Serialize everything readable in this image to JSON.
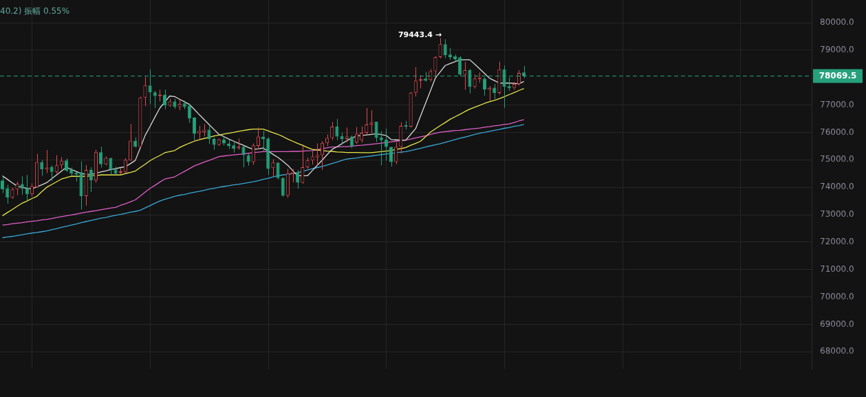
{
  "chart_data": {
    "type": "candlestick",
    "categories": [
      null,
      null,
      null,
      null,
      null,
      null,
      null,
      null,
      null,
      null,
      null,
      null,
      null,
      null,
      null,
      null,
      null,
      null,
      null,
      null,
      null,
      null,
      null,
      null,
      null,
      null,
      null,
      null,
      null,
      null,
      null,
      null,
      null,
      null,
      null,
      null,
      null,
      null,
      null,
      null,
      null,
      null,
      null,
      null,
      null,
      null,
      null,
      null,
      null,
      null,
      null,
      null,
      null,
      null,
      null,
      null,
      null,
      null,
      null,
      null,
      null,
      null,
      null,
      null,
      null,
      null,
      null,
      null,
      null,
      null,
      null,
      null,
      null,
      null,
      null,
      null,
      null,
      null,
      null,
      null,
      null,
      null,
      null,
      null,
      null,
      null,
      null,
      null,
      null,
      null,
      null,
      null,
      null,
      null,
      null,
      null,
      null,
      null,
      null,
      null,
      null,
      null,
      null,
      null,
      null,
      null,
      null,
      null,
      null,
      null,
      null,
      null,
      null,
      null,
      null,
      null,
      null,
      null,
      null,
      null,
      null,
      null,
      null,
      null,
      null,
      null,
      null,
      null,
      null,
      null,
      null,
      null,
      null,
      null,
      null,
      null,
      null,
      null,
      null,
      null,
      null,
      null,
      null,
      null,
      null,
      null,
      null,
      null,
      null,
      null,
      null,
      null,
      null,
      null,
      null,
      null,
      null,
      null,
      null,
      null,
      null,
      null,
      null,
      null,
      null
    ],
    "ohlc": [
      [
        74250,
        74380,
        73790,
        73920
      ],
      [
        73970,
        74090,
        73400,
        73620
      ],
      [
        73620,
        73980,
        73580,
        73920
      ],
      [
        73920,
        74200,
        73710,
        74130
      ],
      [
        74120,
        74400,
        73730,
        73940
      ],
      [
        73970,
        74450,
        73500,
        73750
      ],
      [
        73750,
        74140,
        73670,
        74040
      ],
      [
        74000,
        75220,
        73980,
        74920
      ],
      [
        74920,
        74990,
        74420,
        74650
      ],
      [
        74650,
        75360,
        74520,
        74720
      ],
      [
        74730,
        74800,
        74230,
        74560
      ],
      [
        74560,
        75170,
        74500,
        74800
      ],
      [
        74800,
        75100,
        74670,
        74970
      ],
      [
        74980,
        75050,
        74560,
        74610
      ],
      [
        74630,
        74720,
        74420,
        74500
      ],
      [
        74530,
        74560,
        74210,
        74460
      ],
      [
        74550,
        74950,
        73190,
        73680
      ],
      [
        73680,
        74810,
        73330,
        74630
      ],
      [
        74630,
        74730,
        73830,
        74250
      ],
      [
        74250,
        75370,
        74170,
        75280
      ],
      [
        75280,
        75480,
        74720,
        74840
      ],
      [
        74840,
        75130,
        74800,
        75070
      ],
      [
        75070,
        75070,
        74470,
        74650
      ],
      [
        74650,
        74750,
        74460,
        74500
      ],
      [
        74530,
        74710,
        74470,
        74580
      ],
      [
        74560,
        75060,
        74500,
        75000
      ],
      [
        74980,
        76310,
        74970,
        75700
      ],
      [
        75700,
        75820,
        75450,
        75470
      ],
      [
        75470,
        77310,
        75450,
        77270
      ],
      [
        77270,
        78020,
        76960,
        77710
      ],
      [
        77710,
        78300,
        77040,
        77460
      ],
      [
        77460,
        77520,
        76890,
        77330
      ],
      [
        77330,
        77560,
        77130,
        77380
      ],
      [
        77380,
        77560,
        76850,
        76990
      ],
      [
        76980,
        77230,
        76930,
        77130
      ],
      [
        77130,
        77230,
        76860,
        76930
      ],
      [
        76930,
        77190,
        76810,
        77040
      ],
      [
        77060,
        77160,
        76850,
        76930
      ],
      [
        76980,
        77060,
        76350,
        76510
      ],
      [
        76540,
        76560,
        75720,
        75950
      ],
      [
        75970,
        76240,
        75740,
        76050
      ],
      [
        76010,
        76310,
        75850,
        76100
      ],
      [
        76100,
        76230,
        75580,
        75760
      ],
      [
        75760,
        75820,
        75370,
        75550
      ],
      [
        75550,
        75780,
        75510,
        75740
      ],
      [
        75740,
        75850,
        75520,
        75600
      ],
      [
        75600,
        75720,
        75400,
        75510
      ],
      [
        75530,
        75700,
        75260,
        75400
      ],
      [
        75420,
        75780,
        75370,
        75480
      ],
      [
        75480,
        75520,
        74730,
        75170
      ],
      [
        75170,
        75220,
        74790,
        74920
      ],
      [
        74920,
        75600,
        74820,
        75530
      ],
      [
        75510,
        76180,
        75380,
        75850
      ],
      [
        75850,
        76060,
        75320,
        75760
      ],
      [
        75780,
        75820,
        74450,
        74670
      ],
      [
        74700,
        75020,
        74400,
        74900
      ],
      [
        74900,
        74900,
        74290,
        74340
      ],
      [
        74340,
        74370,
        73660,
        73690
      ],
      [
        73690,
        74670,
        73620,
        74500
      ],
      [
        74480,
        74670,
        74180,
        74550
      ],
      [
        74550,
        74630,
        73950,
        74170
      ],
      [
        74170,
        75510,
        74130,
        74730
      ],
      [
        74730,
        75080,
        74670,
        74980
      ],
      [
        74980,
        75320,
        74830,
        75120
      ],
      [
        75090,
        75600,
        74800,
        75170
      ],
      [
        75170,
        75680,
        74630,
        75620
      ],
      [
        75620,
        75930,
        75500,
        75800
      ],
      [
        75800,
        76390,
        75720,
        76210
      ],
      [
        76210,
        76490,
        75720,
        75850
      ],
      [
        75870,
        75990,
        75570,
        75760
      ],
      [
        75760,
        76180,
        75640,
        75850
      ],
      [
        75850,
        75890,
        75430,
        75500
      ],
      [
        75630,
        76200,
        75580,
        75950
      ],
      [
        75720,
        76220,
        75630,
        75990
      ],
      [
        75990,
        76890,
        75930,
        76290
      ],
      [
        76290,
        76810,
        75970,
        76370
      ],
      [
        76390,
        76390,
        75650,
        75800
      ],
      [
        75820,
        76050,
        74800,
        75720
      ],
      [
        75740,
        76140,
        74970,
        75470
      ],
      [
        75470,
        75480,
        74760,
        74920
      ],
      [
        74920,
        75640,
        74840,
        75470
      ],
      [
        75470,
        76370,
        75230,
        76240
      ],
      [
        76270,
        76420,
        76110,
        76210
      ],
      [
        76210,
        77480,
        76180,
        77450
      ],
      [
        77450,
        78380,
        77310,
        77890
      ],
      [
        77890,
        78080,
        77610,
        77940
      ],
      [
        77960,
        78210,
        77850,
        77890
      ],
      [
        77910,
        78310,
        77850,
        78230
      ],
      [
        78230,
        78780,
        78020,
        78750
      ],
      [
        78750,
        79443.4,
        78700,
        79220
      ],
      [
        79220,
        79400,
        78710,
        78820
      ],
      [
        78840,
        79080,
        78650,
        78750
      ],
      [
        78780,
        78840,
        78590,
        78670
      ],
      [
        78740,
        78780,
        78060,
        78110
      ],
      [
        78110,
        78570,
        77560,
        78270
      ],
      [
        78270,
        78310,
        77420,
        77660
      ],
      [
        77660,
        78110,
        77600,
        77960
      ],
      [
        77940,
        78190,
        77820,
        78000
      ],
      [
        77960,
        78010,
        77340,
        77560
      ],
      [
        77560,
        77690,
        77140,
        77630
      ],
      [
        77630,
        77770,
        77220,
        77440
      ],
      [
        77440,
        78580,
        77380,
        78300
      ],
      [
        78300,
        78440,
        76890,
        77660
      ],
      [
        77690,
        78010,
        77520,
        77610
      ],
      [
        77630,
        77840,
        77560,
        77770
      ],
      [
        77770,
        78270,
        77710,
        78170
      ],
      [
        78190,
        78420,
        77980,
        78069.5
      ],
      null,
      null,
      null,
      null,
      null,
      null,
      null,
      null,
      null,
      null,
      null,
      null,
      null,
      null,
      null,
      null,
      null,
      null,
      null,
      null,
      null,
      null,
      null,
      null,
      null,
      null,
      null,
      null,
      null,
      null,
      null,
      null,
      null,
      null,
      null,
      null,
      null,
      null,
      null,
      null,
      null,
      null,
      null,
      null,
      null,
      null,
      null,
      null,
      null,
      null,
      null,
      null,
      null,
      null,
      null,
      null,
      null,
      null
    ],
    "colors": [
      "#26a17b",
      "#26a17b",
      "#e04a50",
      "#e04a50",
      "#26a17b",
      "#26a17b",
      "#e04a50",
      "#e04a50",
      "#26a17b",
      "#e04a50",
      "#26a17b",
      "#e04a50",
      "#e04a50",
      "#26a17b",
      "#26a17b",
      "#26a17b",
      "#26a17b",
      "#e04a50",
      "#26a17b",
      "#e04a50",
      "#26a17b",
      "#e04a50",
      "#26a17b",
      "#26a17b",
      "#e04a50",
      "#e04a50",
      "#e04a50",
      "#26a17b",
      "#e04a50",
      "#e04a50",
      "#26a17b",
      "#26a17b",
      "#e04a50",
      "#26a17b",
      "#e04a50",
      "#26a17b",
      "#e04a50",
      "#26a17b",
      "#26a17b",
      "#26a17b",
      "#e04a50",
      "#e04a50",
      "#26a17b",
      "#26a17b",
      "#e04a50",
      "#26a17b",
      "#26a17b",
      "#26a17b",
      "#e04a50",
      "#26a17b",
      "#26a17b",
      "#e04a50",
      "#e04a50",
      "#26a17b",
      "#26a17b",
      "#e04a50",
      "#26a17b",
      "#26a17b",
      "#e04a50",
      "#e04a50",
      "#26a17b",
      "#e04a50",
      "#e04a50",
      "#e04a50",
      "#e04a50",
      "#e04a50",
      "#e04a50",
      "#e04a50",
      "#26a17b",
      "#26a17b",
      "#e04a50",
      "#26a17b",
      "#e04a50",
      "#e04a50",
      "#e04a50",
      "#e04a50",
      "#26a17b",
      "#26a17b",
      "#26a17b",
      "#26a17b",
      "#e04a50",
      "#e04a50",
      "#26a17b",
      "#e04a50",
      "#e04a50",
      "#e04a50",
      "#26a17b",
      "#e04a50",
      "#e04a50",
      "#e04a50",
      "#26a17b",
      "#26a17b",
      "#26a17b",
      "#26a17b",
      "#e04a50",
      "#26a17b",
      "#e04a50",
      "#e04a50",
      "#26a17b",
      "#e04a50",
      "#26a17b",
      "#e04a50",
      "#26a17b",
      "#26a17b",
      "#e04a50",
      "#e04a50",
      "#26a17b",
      null,
      null,
      null,
      null,
      null,
      null,
      null,
      null,
      null,
      null,
      null,
      null,
      null,
      null,
      null,
      null,
      null,
      null,
      null,
      null,
      null,
      null,
      null,
      null,
      null,
      null,
      null,
      null,
      null,
      null,
      null,
      null,
      null,
      null,
      null,
      null,
      null,
      null,
      null,
      null,
      null,
      null,
      null,
      null,
      null,
      null,
      null,
      null,
      null,
      null,
      null,
      null,
      null,
      null,
      null,
      null,
      null,
      null
    ],
    "series": [
      {
        "type": "line",
        "color": "#d9d9d9",
        "values": [
          74420,
          74290,
          74160,
          74040,
          74000,
          73960,
          73940,
          74020,
          74090,
          74170,
          74310,
          74450,
          74590,
          74730,
          74650,
          74580,
          74500,
          74480,
          74470,
          74510,
          74560,
          74600,
          74650,
          74680,
          74720,
          74750,
          74860,
          74980,
          75430,
          75890,
          76220,
          76560,
          76890,
          77110,
          77330,
          77310,
          77210,
          77120,
          77020,
          76840,
          76650,
          76470,
          76290,
          76110,
          75930,
          75850,
          75760,
          75680,
          75600,
          75530,
          75450,
          75380,
          75400,
          75430,
          75320,
          75200,
          75090,
          74950,
          74800,
          74610,
          74420,
          74420,
          74420,
          74610,
          74800,
          74990,
          75190,
          75380,
          75480,
          75590,
          75700,
          75790,
          75870,
          75890,
          75910,
          75930,
          75950,
          75920,
          75890,
          75740,
          75730,
          75720,
          75720,
          75930,
          76140,
          76600,
          77060,
          77520,
          77980,
          78210,
          78440,
          78510,
          78580,
          78650,
          78650,
          78650,
          78490,
          78320,
          78150,
          77980,
          77890,
          77800,
          77800,
          77800,
          77790,
          77770,
          77860,
          null,
          null,
          null,
          null,
          null,
          null,
          null,
          null,
          null,
          null,
          null,
          null,
          null,
          null,
          null,
          null,
          null,
          null,
          null,
          null,
          null,
          null,
          null,
          null,
          null,
          null,
          null,
          null,
          null,
          null,
          null,
          null,
          null,
          null,
          null,
          null,
          null,
          null,
          null,
          null,
          null,
          null,
          null,
          null,
          null,
          null,
          null,
          null,
          null,
          null,
          null,
          null,
          null,
          null,
          null,
          null,
          null,
          null
        ]
      },
      {
        "type": "line",
        "color": "#e6e64a",
        "values": [
          72960,
          73080,
          73190,
          73310,
          73420,
          73500,
          73590,
          73670,
          73840,
          74000,
          74100,
          74200,
          74300,
          74350,
          74400,
          74400,
          74400,
          74400,
          74420,
          74430,
          74450,
          74450,
          74450,
          74450,
          74450,
          74500,
          74540,
          74590,
          74720,
          74840,
          74970,
          75070,
          75160,
          75260,
          75300,
          75340,
          75450,
          75530,
          75610,
          75680,
          75730,
          75780,
          75820,
          75870,
          75900,
          75940,
          75970,
          76000,
          76040,
          76070,
          76100,
          76120,
          76120,
          76120,
          76060,
          75990,
          75930,
          75850,
          75760,
          75680,
          75600,
          75530,
          75450,
          75380,
          75360,
          75340,
          75320,
          75310,
          75290,
          75280,
          75270,
          75270,
          75270,
          75260,
          75260,
          75260,
          75280,
          75300,
          75320,
          75340,
          75380,
          75410,
          75450,
          75530,
          75600,
          75680,
          75840,
          76010,
          76130,
          76250,
          76360,
          76480,
          76570,
          76660,
          76760,
          76850,
          76920,
          76990,
          77060,
          77120,
          77170,
          77230,
          77300,
          77380,
          77450,
          77530,
          77600,
          null,
          null,
          null,
          null,
          null,
          null,
          null,
          null,
          null,
          null,
          null,
          null,
          null,
          null,
          null,
          null,
          null,
          null,
          null,
          null,
          null,
          null,
          null,
          null,
          null,
          null,
          null,
          null,
          null,
          null,
          null,
          null,
          null,
          null,
          null,
          null,
          null,
          null,
          null,
          null,
          null,
          null,
          null,
          null,
          null,
          null,
          null,
          null,
          null,
          null,
          null,
          null,
          null,
          null,
          null,
          null,
          null,
          null
        ]
      },
      {
        "type": "line",
        "color": "#e05fc8",
        "values": [
          72620,
          72640,
          72670,
          72690,
          72710,
          72740,
          72760,
          72780,
          72810,
          72830,
          72860,
          72900,
          72930,
          72960,
          72990,
          73020,
          73060,
          73090,
          73120,
          73150,
          73180,
          73210,
          73240,
          73270,
          73340,
          73400,
          73470,
          73540,
          73680,
          73820,
          73960,
          74070,
          74190,
          74300,
          74340,
          74380,
          74480,
          74580,
          74680,
          74780,
          74850,
          74920,
          74980,
          75050,
          75120,
          75140,
          75160,
          75180,
          75200,
          75220,
          75240,
          75260,
          75280,
          75300,
          75300,
          75300,
          75300,
          75300,
          75300,
          75310,
          75310,
          75320,
          75330,
          75340,
          75370,
          75410,
          75440,
          75470,
          75470,
          75480,
          75480,
          75500,
          75520,
          75530,
          75550,
          75570,
          75590,
          75610,
          75630,
          75660,
          75680,
          75700,
          75720,
          75760,
          75800,
          75840,
          75880,
          75930,
          75970,
          76010,
          76030,
          76050,
          76070,
          76080,
          76100,
          76120,
          76140,
          76160,
          76190,
          76210,
          76240,
          76260,
          76290,
          76310,
          76360,
          76420,
          76470,
          null,
          null,
          null,
          null,
          null,
          null,
          null,
          null,
          null,
          null,
          null,
          null,
          null,
          null,
          null,
          null,
          null,
          null,
          null,
          null,
          null,
          null,
          null,
          null,
          null,
          null,
          null,
          null,
          null,
          null,
          null,
          null,
          null,
          null,
          null,
          null,
          null,
          null,
          null,
          null,
          null,
          null,
          null,
          null,
          null,
          null,
          null,
          null,
          null,
          null,
          null,
          null,
          null,
          null,
          null,
          null,
          null,
          null
        ]
      },
      {
        "type": "line",
        "color": "#3aa7d6",
        "values": [
          72160,
          72190,
          72210,
          72240,
          72270,
          72300,
          72330,
          72350,
          72380,
          72410,
          72450,
          72490,
          72540,
          72580,
          72620,
          72660,
          72710,
          72750,
          72790,
          72830,
          72870,
          72900,
          72940,
          72980,
          73010,
          73050,
          73090,
          73120,
          73160,
          73250,
          73330,
          73420,
          73500,
          73560,
          73610,
          73670,
          73710,
          73740,
          73780,
          73820,
          73850,
          73890,
          73930,
          73960,
          74000,
          74030,
          74060,
          74090,
          74110,
          74140,
          74170,
          74200,
          74240,
          74290,
          74330,
          74380,
          74420,
          74450,
          74470,
          74500,
          74530,
          74580,
          74630,
          74680,
          74720,
          74760,
          74810,
          74870,
          74920,
          74980,
          75030,
          75050,
          75070,
          75100,
          75120,
          75140,
          75170,
          75190,
          75210,
          75230,
          75260,
          75280,
          75300,
          75340,
          75380,
          75420,
          75470,
          75510,
          75550,
          75590,
          75640,
          75690,
          75740,
          75790,
          75830,
          75880,
          75930,
          75970,
          76000,
          76040,
          76080,
          76110,
          76150,
          76180,
          76220,
          76250,
          76290,
          null,
          null,
          null,
          null,
          null,
          null,
          null,
          null,
          null,
          null,
          null,
          null,
          null,
          null,
          null,
          null,
          null,
          null,
          null,
          null,
          null,
          null,
          null,
          null,
          null,
          null,
          null,
          null,
          null,
          null,
          null,
          null,
          null,
          null,
          null,
          null,
          null,
          null,
          null,
          null,
          null,
          null,
          null,
          null,
          null,
          null,
          null,
          null,
          null,
          null,
          null,
          null,
          null,
          null,
          null,
          null,
          null,
          null
        ]
      }
    ],
    "ylim": [
      67380,
      80830
    ],
    "yticks": [
      {
        "value": 80000,
        "label": "80000.0"
      },
      {
        "value": 79000,
        "label": "79000.0"
      },
      {
        "value": 77000,
        "label": "77000.0"
      },
      {
        "value": 76000,
        "label": "76000.0"
      },
      {
        "value": 75000,
        "label": "75000.0"
      },
      {
        "value": 74000,
        "label": "74000.0"
      },
      {
        "value": 73000,
        "label": "73000.0"
      },
      {
        "value": 72000,
        "label": "72000.0"
      },
      {
        "value": 71000,
        "label": "71000.0"
      },
      {
        "value": 70000,
        "label": "70000.0"
      },
      {
        "value": 69000,
        "label": "69000.0"
      },
      {
        "value": 68000,
        "label": "68000.0"
      }
    ],
    "ref_lines": [
      {
        "axis": "y",
        "value": 78069.5,
        "label": "78069.5",
        "color": "#26a17b",
        "line_style": "dashed"
      }
    ],
    "annotations": [
      "40.2) 振幅 0.55%",
      "79443.4 →"
    ],
    "grid": true,
    "tick_labels": "y",
    "marker": "none"
  }
}
